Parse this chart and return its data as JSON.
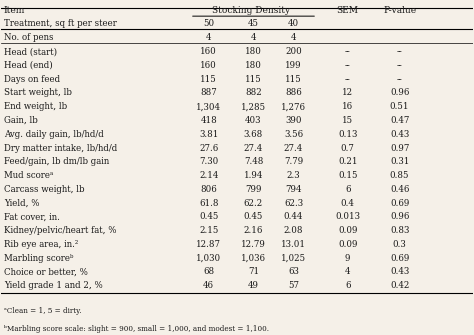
{
  "title_left": "Item",
  "title_stocking": "Stocking Density",
  "title_sem": "SEM",
  "title_pvalue": "P-value",
  "col_headers": [
    "50",
    "45",
    "40"
  ],
  "rows": [
    [
      "Treatment, sq ft per steer",
      "50",
      "45",
      "40",
      "",
      ""
    ],
    [
      "No. of pens",
      "4",
      "4",
      "4",
      "",
      ""
    ],
    [
      "Head (start)",
      "160",
      "180",
      "200",
      "--",
      "--"
    ],
    [
      "Head (end)",
      "160",
      "180",
      "199",
      "--",
      "--"
    ],
    [
      "Days on feed",
      "115",
      "115",
      "115",
      "--",
      "--"
    ],
    [
      "Start weight, lb",
      "887",
      "882",
      "886",
      "12",
      "0.96"
    ],
    [
      "End weight, lb",
      "1,304",
      "1,285",
      "1,276",
      "16",
      "0.51"
    ],
    [
      "Gain, lb",
      "418",
      "403",
      "390",
      "15",
      "0.47"
    ],
    [
      "Avg. daily gain, lb/hd/d",
      "3.81",
      "3.68",
      "3.56",
      "0.13",
      "0.43"
    ],
    [
      "Dry matter intake, lb/hd/d",
      "27.6",
      "27.4",
      "27.4",
      "0.7",
      "0.97"
    ],
    [
      "Feed/gain, lb dm/lb gain",
      "7.30",
      "7.48",
      "7.79",
      "0.21",
      "0.31"
    ],
    [
      "Mud scoreᵃ",
      "2.14",
      "1.94",
      "2.3",
      "0.15",
      "0.85"
    ],
    [
      "Carcass weight, lb",
      "806",
      "799",
      "794",
      "6",
      "0.46"
    ],
    [
      "Yield, %",
      "61.8",
      "62.2",
      "62.3",
      "0.4",
      "0.69"
    ],
    [
      "Fat cover, in.",
      "0.45",
      "0.45",
      "0.44",
      "0.013",
      "0.96"
    ],
    [
      "Kidney/pelvic/heart fat, %",
      "2.15",
      "2.16",
      "2.08",
      "0.09",
      "0.83"
    ],
    [
      "Rib eye area, in.²",
      "12.87",
      "12.79",
      "13.01",
      "0.09",
      "0.3"
    ],
    [
      "Marbling scoreᵇ",
      "1,030",
      "1,036",
      "1,025",
      "9",
      "0.69"
    ],
    [
      "Choice or better, %",
      "68",
      "71",
      "63",
      "4",
      "0.43"
    ],
    [
      "Yield grade 1 and 2, %",
      "46",
      "49",
      "57",
      "6",
      "0.42"
    ]
  ],
  "footnotes": [
    "ᵃClean = 1, 5 = dirty.",
    "ᵇMarbling score scale: slight = 900, small = 1,000, and modest = 1,100."
  ],
  "bg_color": "#f5f0e8",
  "text_color": "#1a1a1a",
  "header_color": "#1a1a1a"
}
